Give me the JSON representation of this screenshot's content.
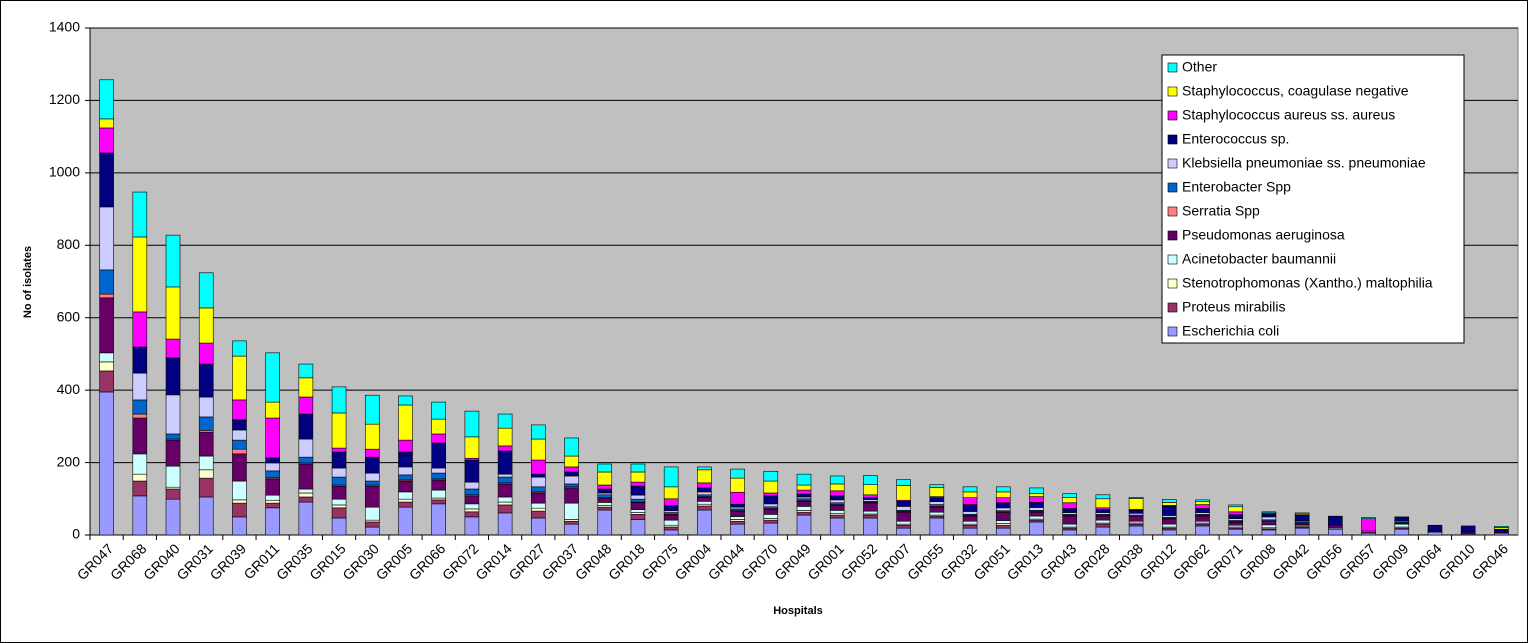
{
  "chart_data": {
    "type": "stacked_bar",
    "y_label": "No of isolates",
    "x_label": "Hospitals",
    "categories": [
      "GR047",
      "GR068",
      "GR040",
      "GR031",
      "GR039",
      "GR011",
      "GR035",
      "GR015",
      "GR030",
      "GR005",
      "GR066",
      "GR072",
      "GR014",
      "GR027",
      "GR037",
      "GR048",
      "GR018",
      "GR075",
      "GR004",
      "GR044",
      "GR070",
      "GR049",
      "GR001",
      "GR052",
      "GR007",
      "GR055",
      "GR032",
      "GR051",
      "GR013",
      "GR043",
      "GR028",
      "GR038",
      "GR012",
      "GR062",
      "GR071",
      "GR008",
      "GR042",
      "GR056",
      "GR057",
      "GR009",
      "GR064",
      "GR010",
      "GR046"
    ],
    "series": [
      {
        "name": "Escherichia coli",
        "color": "#9999FF",
        "values": [
          395,
          108,
          99,
          105,
          50,
          75,
          91,
          47,
          22,
          77,
          86,
          50,
          61,
          47,
          30,
          69,
          43,
          14,
          69,
          30,
          33,
          55,
          47,
          47,
          19,
          47,
          19,
          19,
          36,
          14,
          22,
          25,
          14,
          25,
          16,
          14,
          19,
          16,
          5,
          16,
          8,
          3,
          5
        ]
      },
      {
        "name": "Proteus mirabilis",
        "color": "#993366",
        "values": [
          58,
          41,
          28,
          52,
          38,
          13,
          14,
          28,
          14,
          14,
          11,
          14,
          22,
          19,
          8,
          8,
          14,
          8,
          11,
          8,
          8,
          8,
          8,
          8,
          8,
          5,
          8,
          8,
          5,
          5,
          8,
          5,
          5,
          5,
          3,
          3,
          3,
          0,
          3,
          3,
          0,
          0,
          0
        ]
      },
      {
        "name": "Stenotrophomonas (Xantho.) maltophilia",
        "color": "#FFFFCC",
        "values": [
          25,
          19,
          5,
          23,
          9,
          8,
          11,
          8,
          5,
          8,
          5,
          8,
          8,
          8,
          5,
          5,
          5,
          5,
          5,
          5,
          5,
          5,
          5,
          3,
          3,
          3,
          3,
          5,
          3,
          3,
          3,
          3,
          3,
          3,
          3,
          3,
          3,
          0,
          0,
          3,
          0,
          0,
          0
        ]
      },
      {
        "name": "Acinetobacter baumannii",
        "color": "#CCFFFF",
        "values": [
          25,
          56,
          58,
          38,
          52,
          14,
          11,
          16,
          36,
          20,
          22,
          14,
          14,
          14,
          45,
          8,
          8,
          14,
          8,
          8,
          11,
          11,
          8,
          8,
          8,
          8,
          8,
          8,
          8,
          8,
          8,
          5,
          8,
          5,
          5,
          8,
          3,
          3,
          3,
          8,
          0,
          0,
          0
        ]
      },
      {
        "name": "Pseudomonas aeruginosa",
        "color": "#660066",
        "values": [
          152,
          99,
          72,
          66,
          75,
          45,
          69,
          36,
          58,
          30,
          28,
          22,
          36,
          28,
          42,
          11,
          19,
          14,
          11,
          14,
          14,
          14,
          14,
          22,
          25,
          14,
          14,
          22,
          11,
          22,
          11,
          14,
          14,
          14,
          8,
          11,
          5,
          8,
          0,
          3,
          3,
          5,
          3
        ]
      },
      {
        "name": "Serratia Spp",
        "color": "#FF8080",
        "values": [
          10,
          11,
          3,
          5,
          13,
          3,
          3,
          3,
          3,
          3,
          3,
          3,
          3,
          3,
          3,
          2,
          2,
          2,
          2,
          2,
          2,
          2,
          2,
          2,
          2,
          2,
          2,
          2,
          2,
          2,
          2,
          0,
          2,
          2,
          2,
          0,
          0,
          0,
          0,
          0,
          0,
          0,
          0
        ]
      },
      {
        "name": "Enterobacter Spp",
        "color": "#0066CC",
        "values": [
          67,
          39,
          14,
          37,
          25,
          19,
          16,
          22,
          11,
          14,
          16,
          16,
          16,
          14,
          8,
          8,
          8,
          5,
          5,
          5,
          5,
          5,
          5,
          3,
          3,
          5,
          3,
          3,
          3,
          3,
          3,
          3,
          3,
          3,
          3,
          3,
          3,
          0,
          0,
          3,
          0,
          0,
          0
        ]
      },
      {
        "name": "Klebsiella pneumoniae ss. pneumoniae",
        "color": "#CCCCFF",
        "values": [
          174,
          74,
          108,
          55,
          28,
          22,
          50,
          25,
          22,
          22,
          14,
          19,
          8,
          27,
          22,
          5,
          11,
          5,
          8,
          5,
          8,
          5,
          8,
          5,
          11,
          8,
          8,
          8,
          8,
          5,
          5,
          5,
          5,
          5,
          5,
          8,
          3,
          0,
          0,
          3,
          0,
          0,
          0
        ]
      },
      {
        "name": "Enterococcus sp.",
        "color": "#000080",
        "values": [
          149,
          72,
          102,
          91,
          28,
          14,
          69,
          44,
          44,
          41,
          69,
          61,
          64,
          8,
          11,
          11,
          25,
          14,
          11,
          8,
          22,
          8,
          11,
          5,
          14,
          11,
          19,
          14,
          14,
          11,
          8,
          8,
          25,
          11,
          11,
          8,
          16,
          25,
          0,
          11,
          16,
          17,
          8
        ]
      },
      {
        "name": "Staphylococcus aureus ss. aureus",
        "color": "#FF00FF",
        "values": [
          69,
          97,
          52,
          58,
          55,
          110,
          47,
          11,
          22,
          33,
          25,
          5,
          14,
          39,
          14,
          11,
          11,
          19,
          14,
          33,
          8,
          11,
          14,
          8,
          3,
          3,
          19,
          14,
          16,
          16,
          5,
          3,
          3,
          11,
          8,
          3,
          0,
          0,
          34,
          0,
          0,
          0,
          0
        ]
      },
      {
        "name": "Staphylococcus, coagulase negative",
        "color": "#FFFF00",
        "values": [
          25,
          207,
          144,
          97,
          121,
          44,
          53,
          97,
          69,
          97,
          41,
          59,
          49,
          58,
          30,
          36,
          28,
          33,
          36,
          39,
          33,
          14,
          19,
          28,
          41,
          25,
          16,
          16,
          8,
          14,
          25,
          30,
          8,
          8,
          14,
          0,
          3,
          0,
          0,
          0,
          0,
          0,
          5
        ]
      },
      {
        "name": "Other",
        "color": "#00FFFF",
        "values": [
          108,
          124,
          143,
          97,
          42,
          136,
          38,
          72,
          80,
          25,
          47,
          71,
          39,
          39,
          50,
          22,
          22,
          55,
          8,
          25,
          27,
          30,
          22,
          25,
          16,
          8,
          14,
          14,
          16,
          11,
          11,
          3,
          8,
          5,
          5,
          3,
          3,
          0,
          3,
          0,
          0,
          0,
          3
        ]
      }
    ],
    "ylim": [
      0,
      1400
    ],
    "yticks": [
      0,
      200,
      400,
      600,
      800,
      1000,
      1200,
      1400
    ],
    "grid": true,
    "legend": "top-right",
    "plot_color": "#C0C0C0"
  }
}
